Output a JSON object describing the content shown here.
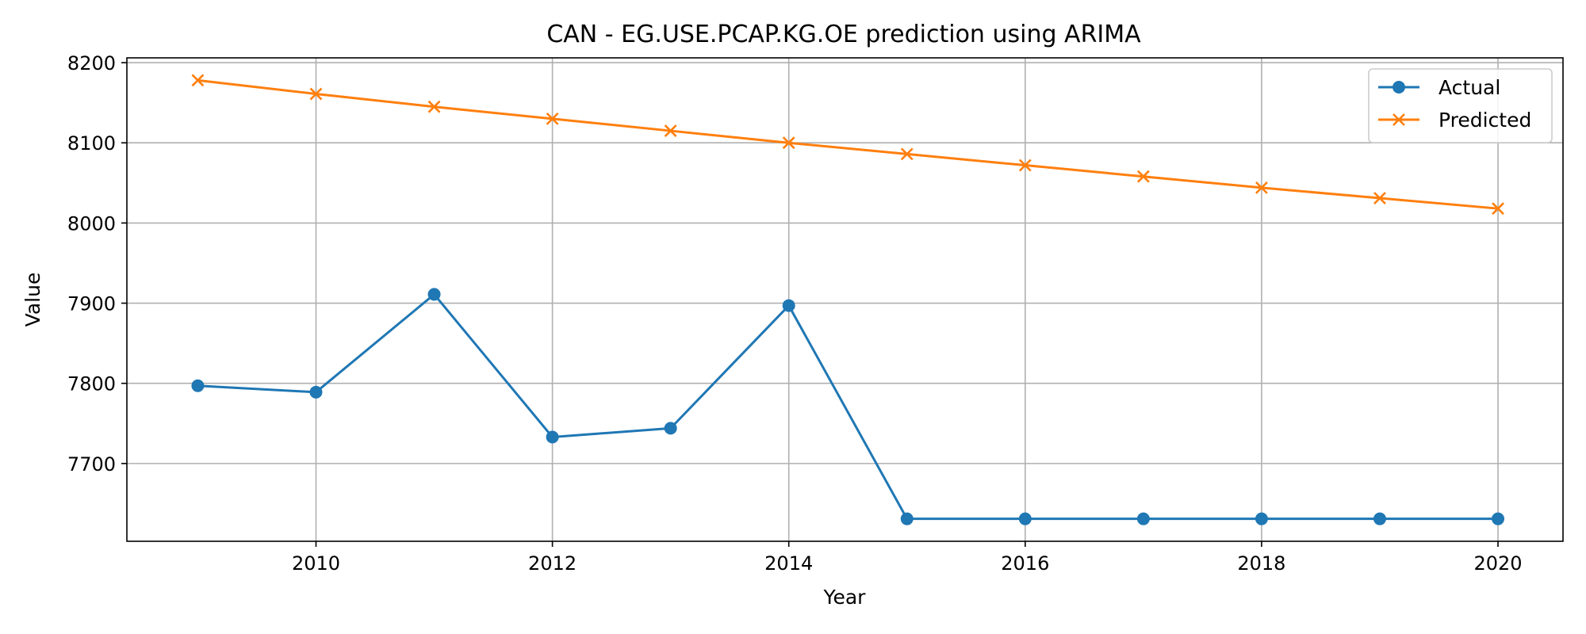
{
  "chart_data": {
    "type": "line",
    "title": "CAN - EG.USE.PCAP.KG.OE prediction using ARIMA",
    "xlabel": "Year",
    "ylabel": "Value",
    "x": [
      2009,
      2010,
      2011,
      2012,
      2013,
      2014,
      2015,
      2016,
      2017,
      2018,
      2019,
      2020
    ],
    "xticks": [
      2010,
      2012,
      2014,
      2016,
      2018,
      2020
    ],
    "yticks": [
      7700,
      7800,
      7900,
      8000,
      8100,
      8200
    ],
    "xlim": [
      2008.4,
      2020.55
    ],
    "ylim": [
      7603,
      8206
    ],
    "grid": true,
    "legend": "top-right",
    "series": [
      {
        "name": "Actual",
        "color": "#1f77b4",
        "marker": "circle",
        "values": [
          7797,
          7789,
          7911,
          7733,
          7744,
          7897,
          7631,
          7631,
          7631,
          7631,
          7631,
          7631
        ]
      },
      {
        "name": "Predicted",
        "color": "#ff7f0e",
        "marker": "x",
        "values": [
          8178,
          8161,
          8145,
          8130,
          8115,
          8100,
          8086,
          8072,
          8058,
          8044,
          8031,
          8018
        ]
      }
    ]
  }
}
